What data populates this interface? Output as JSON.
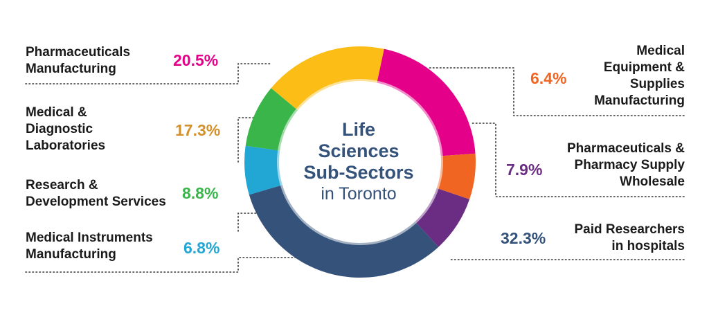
{
  "chart_data": {
    "type": "pie",
    "title_lines": [
      "Life",
      "Sciences",
      "Sub-Sectors"
    ],
    "subtitle": "in Toronto",
    "slices": [
      {
        "label": "Pharmaceuticals\nManufacturing",
        "value": 20.5,
        "value_label": "20.5%",
        "color": "#e5008a"
      },
      {
        "label": "Medical\nEquipment &\nSupplies\nManufacturing",
        "value": 6.4,
        "value_label": "6.4%",
        "color": "#f06522"
      },
      {
        "label": "Pharmaceuticals &\nPharmacy Supply\nWholesale",
        "value": 7.9,
        "value_label": "7.9%",
        "color": "#6b2d83"
      },
      {
        "label": "Paid Researchers\nin hospitals",
        "value": 32.3,
        "value_label": "32.3%",
        "color": "#34527a"
      },
      {
        "label": "Medical Instruments\nManufacturing",
        "value": 6.8,
        "value_label": "6.8%",
        "color": "#22a6d4"
      },
      {
        "label": "Research &\nDevelopment Services",
        "value": 8.8,
        "value_label": "8.8%",
        "color": "#3ab54a"
      },
      {
        "label": "Medical &\nDiagnostic\nLaboratories",
        "value": 17.3,
        "value_label": "17.3%",
        "color": "#fbbd16"
      }
    ]
  }
}
